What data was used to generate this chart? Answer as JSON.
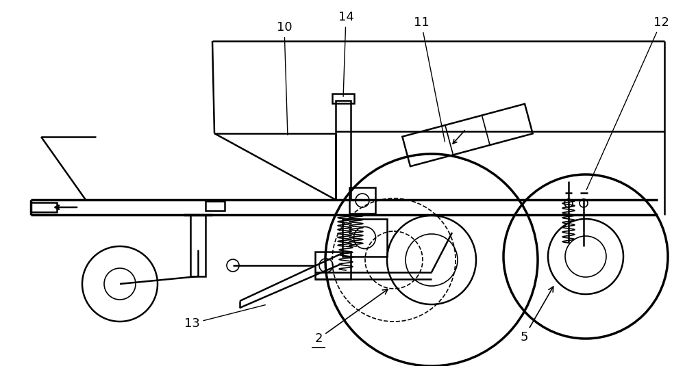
{
  "bg": "#ffffff",
  "lc": "#000000",
  "lw_thin": 1.2,
  "lw_med": 1.8,
  "lw_thick": 2.5,
  "label_fs": 13,
  "fig_w": 10.0,
  "fig_h": 5.35,
  "dpi": 100
}
